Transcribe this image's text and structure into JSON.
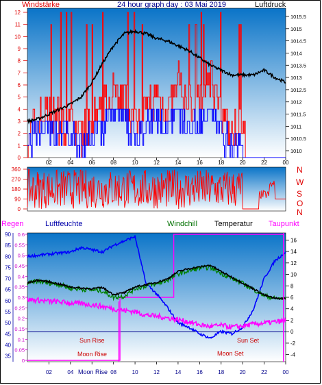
{
  "title": "24 hour graph day : 03 Mai 2019",
  "colors": {
    "wind": "#ff0000",
    "gust_ref": "#0000ff",
    "pressure": "#000000",
    "humidity": "#0000ff",
    "dewpoint": "#ff00ff",
    "windchill": "#008000",
    "temperature": "#000000",
    "rain": "#ff00ff",
    "bg_top": "#0a74c8",
    "bg_bottom": "#ffffff",
    "sun_text": "#cc0000"
  },
  "panels": {
    "wind_pressure": {
      "left_label": "Windstärke",
      "right_label": "Luftdruck",
      "wind_ticks": [
        "0",
        "1",
        "2",
        "3",
        "4",
        "5",
        "6",
        "7",
        "8",
        "9",
        "10",
        "11",
        "12"
      ],
      "pressure_ticks": [
        "1010",
        "1010.5",
        "1011",
        "1011.5",
        "1012",
        "1012.5",
        "1013",
        "1013.5",
        "1014",
        "1014.5",
        "1015",
        "1015.5"
      ]
    },
    "direction": {
      "ticks": [
        "360",
        "270",
        "180",
        "90",
        "0"
      ],
      "compass": [
        "N",
        "W",
        "S",
        "O",
        "N"
      ]
    },
    "temp_hum": {
      "rain_label": "Regen",
      "humidity_label": "Luftfeuchte",
      "windchill_label": "Windchill",
      "temp_label": "Temperatur",
      "dew_label": "Taupunkt",
      "humidity_ticks": [
        "90",
        "85",
        "80",
        "75",
        "70",
        "65",
        "60",
        "55",
        "50",
        "45",
        "40",
        "35"
      ],
      "rain_ticks": [
        "0.6",
        "0.55",
        "0.5",
        "0.45",
        "0.4",
        "0.35",
        "0.3",
        "0.25",
        "0.2",
        "0.15",
        "0.1",
        "0.05",
        "0"
      ],
      "temp_ticks": [
        "16",
        "14",
        "12",
        "10",
        "8",
        "6",
        "4",
        "2",
        "0",
        "-2",
        "-4"
      ],
      "sun_rise": "Sun Rise",
      "moon_rise": "Moon Rise",
      "sun_set": "Sun Set",
      "moon_set": "Moon Set",
      "bottom_moon_rise": "Moon Rise"
    }
  },
  "x_ticks": [
    "02",
    "04",
    "06",
    "08",
    "10",
    "12",
    "14",
    "16",
    "18",
    "20",
    "22",
    "00"
  ],
  "x_ticks_bottom": [
    "02",
    "04",
    "",
    "08",
    "10",
    "12",
    "14",
    "16",
    "18",
    "20",
    "22",
    "00"
  ],
  "chart_data": [
    {
      "type": "line",
      "name": "wind_pressure",
      "x_hours": [
        0,
        1,
        2,
        3,
        4,
        5,
        6,
        7,
        8,
        9,
        10,
        11,
        12,
        13,
        14,
        15,
        16,
        17,
        18,
        19,
        20,
        21,
        22,
        23,
        24
      ],
      "series": [
        {
          "name": "Luftdruck",
          "unit": "hPa",
          "values": [
            1011.2,
            1011.3,
            1011.5,
            1011.7,
            1011.9,
            1012.2,
            1012.8,
            1013.6,
            1014.3,
            1014.8,
            1014.9,
            1014.8,
            1014.6,
            1014.5,
            1014.3,
            1014.1,
            1013.8,
            1013.5,
            1013.3,
            1013.1,
            1013.1,
            1013.1,
            1013.3,
            1013.0,
            1012.8
          ]
        },
        {
          "name": "Windstärke",
          "unit": "bft",
          "values": [
            2,
            3,
            4,
            3,
            3,
            2,
            3,
            4,
            6,
            5,
            3,
            4,
            5,
            4,
            6,
            4,
            5,
            7,
            3,
            2,
            3,
            1,
            1,
            1,
            0
          ]
        }
      ],
      "ylim_wind": [
        0,
        12
      ],
      "ylim_pressure": [
        1010,
        1015.5
      ]
    },
    {
      "type": "line",
      "name": "direction",
      "series": [
        {
          "name": "Windrichtung",
          "unit": "deg",
          "values": [
            180,
            220,
            160,
            250,
            200,
            170,
            230,
            190,
            260,
            210,
            180,
            240,
            200,
            220,
            190,
            250,
            230,
            180,
            210,
            200,
            0,
            110,
            160,
            90,
            90
          ]
        }
      ],
      "ylim": [
        0,
        360
      ]
    },
    {
      "type": "line",
      "name": "temp_hum",
      "x_hours": [
        0,
        1,
        2,
        3,
        4,
        5,
        6,
        7,
        8,
        9,
        10,
        11,
        12,
        13,
        14,
        15,
        16,
        17,
        18,
        19,
        20,
        21,
        22,
        23,
        24
      ],
      "series": [
        {
          "name": "Temperatur",
          "unit": "C",
          "values": [
            8.5,
            9.0,
            8.7,
            8.3,
            7.8,
            7.6,
            7.5,
            7.7,
            6.5,
            6.8,
            7.8,
            8.2,
            8.6,
            9.2,
            10.5,
            11.0,
            11.3,
            11.6,
            10.5,
            9.5,
            8.5,
            7.5,
            6.4,
            5.8,
            5.8
          ]
        },
        {
          "name": "Windchill",
          "unit": "C",
          "values": [
            8.4,
            8.8,
            8.5,
            8.2,
            7.6,
            7.4,
            7.3,
            7.1,
            6.0,
            6.2,
            7.5,
            8.0,
            8.3,
            9.0,
            10.1,
            10.6,
            11.1,
            11.2,
            10.2,
            9.3,
            8.4,
            7.4,
            6.3,
            5.8,
            5.8
          ]
        },
        {
          "name": "Taupunkt",
          "unit": "C",
          "values": [
            5.6,
            5.5,
            5.3,
            5.2,
            5.0,
            4.9,
            4.7,
            4.4,
            4.0,
            3.7,
            3.5,
            2.9,
            2.7,
            2.4,
            2.1,
            1.7,
            1.2,
            0.9,
            1.1,
            0.8,
            1.0,
            1.3,
            1.5,
            1.7,
            1.9
          ]
        },
        {
          "name": "Luftfeuchte",
          "unit": "%",
          "values": [
            80,
            80.5,
            81,
            81.5,
            82,
            84,
            83,
            82,
            85,
            87,
            89,
            68,
            63,
            57,
            50,
            48,
            45,
            43,
            46,
            45,
            48,
            56,
            70,
            78,
            82
          ]
        },
        {
          "name": "Regen",
          "unit": "mm",
          "values": [
            0,
            0,
            0,
            0,
            0,
            0,
            0,
            0,
            0.3,
            0.3,
            0.3,
            0.3,
            0.3,
            0.6,
            0.6,
            0.6,
            0.6,
            0.6,
            0.6,
            0.6,
            0.6,
            0.6,
            0.6,
            0.6,
            0.6
          ]
        }
      ],
      "ylim_temp": [
        -5,
        17
      ],
      "ylim_humidity": [
        35,
        90
      ],
      "ylim_rain": [
        0,
        0.6
      ]
    }
  ]
}
